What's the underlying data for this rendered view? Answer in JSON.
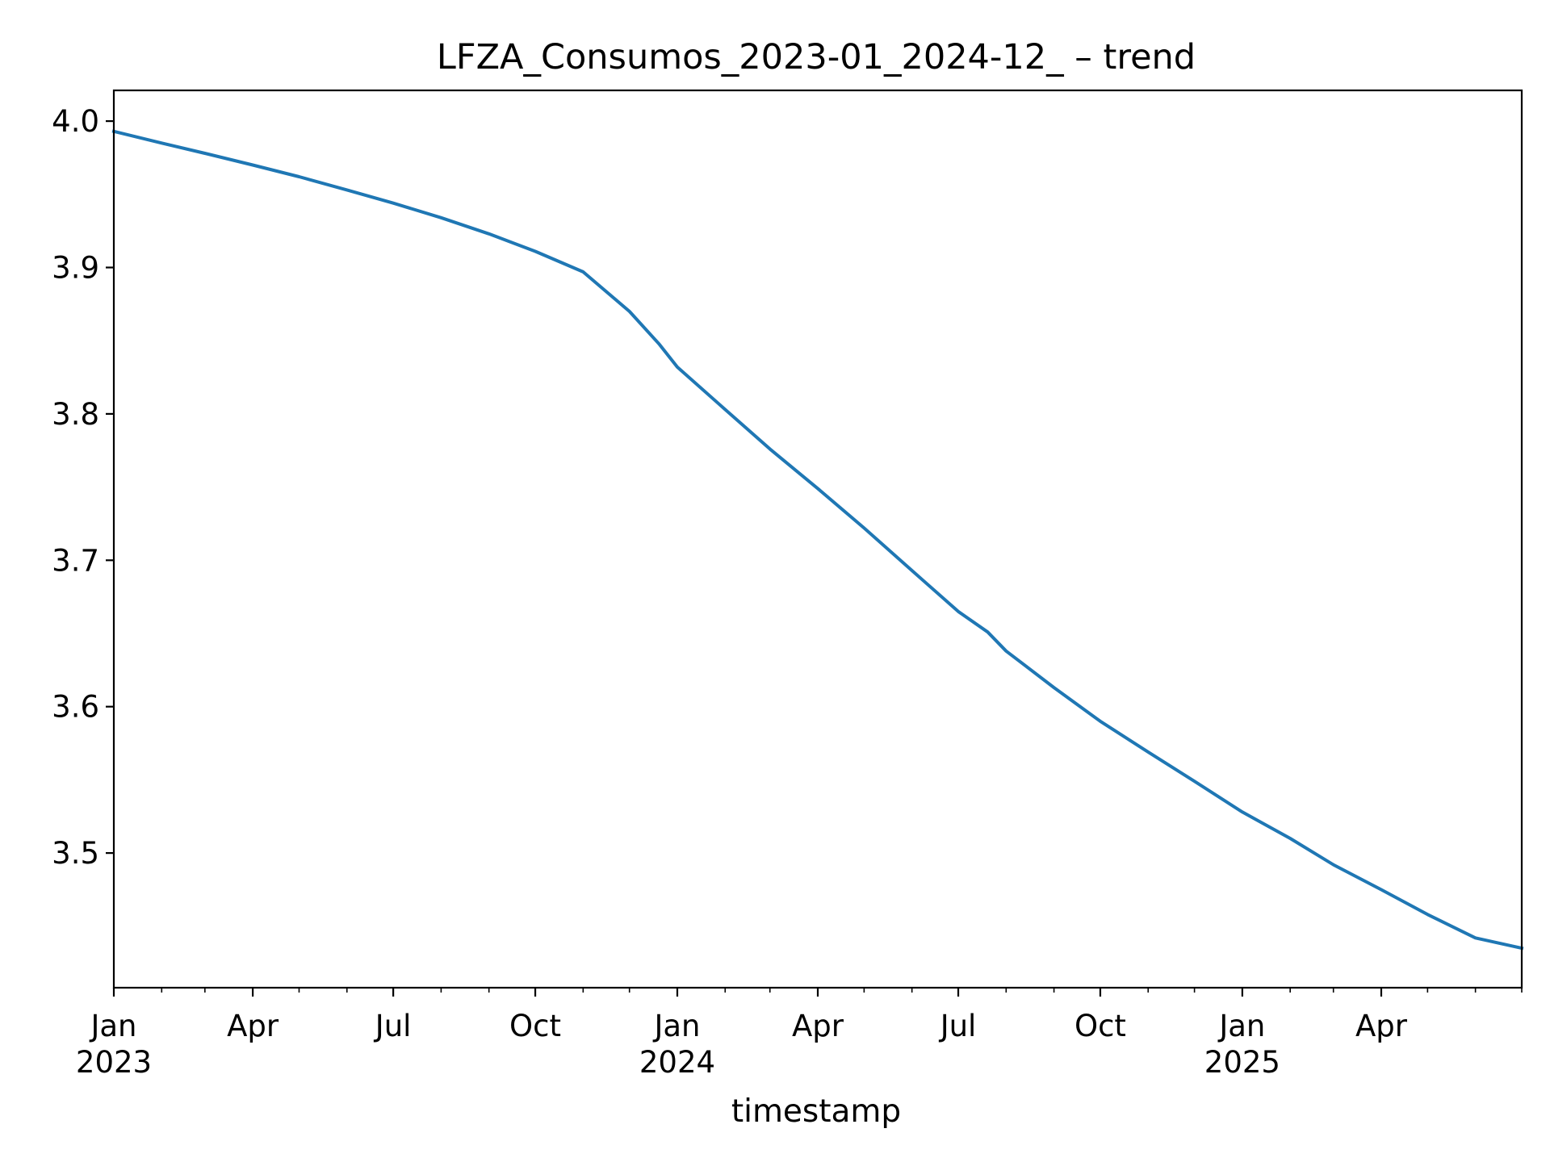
{
  "chart_data": {
    "type": "line",
    "title": "LFZA_Consumos_2023-01_2024-12_ – trend",
    "xlabel": "timestamp",
    "ylabel": "",
    "xlim": [
      "2023-01-01",
      "2025-07-01"
    ],
    "ylim": [
      3.408,
      4.021
    ],
    "grid": false,
    "legend": "none",
    "y_ticks": [
      {
        "value": 4.0,
        "label": "4.0"
      },
      {
        "value": 3.9,
        "label": "3.9"
      },
      {
        "value": 3.8,
        "label": "3.8"
      },
      {
        "value": 3.7,
        "label": "3.7"
      },
      {
        "value": 3.6,
        "label": "3.6"
      },
      {
        "value": 3.5,
        "label": "3.5"
      }
    ],
    "x_major_ticks": [
      {
        "date": "2023-01-01",
        "label": "Jan",
        "sublabel": "2023"
      },
      {
        "date": "2023-04-01",
        "label": "Apr",
        "sublabel": ""
      },
      {
        "date": "2023-07-01",
        "label": "Jul",
        "sublabel": ""
      },
      {
        "date": "2023-10-01",
        "label": "Oct",
        "sublabel": ""
      },
      {
        "date": "2024-01-01",
        "label": "Jan",
        "sublabel": "2024"
      },
      {
        "date": "2024-04-01",
        "label": "Apr",
        "sublabel": ""
      },
      {
        "date": "2024-07-01",
        "label": "Jul",
        "sublabel": ""
      },
      {
        "date": "2024-10-01",
        "label": "Oct",
        "sublabel": ""
      },
      {
        "date": "2025-01-01",
        "label": "Jan",
        "sublabel": "2025"
      },
      {
        "date": "2025-04-01",
        "label": "Apr",
        "sublabel": ""
      }
    ],
    "x_minor_ticks": [
      "2023-02-01",
      "2023-03-01",
      "2023-05-01",
      "2023-06-01",
      "2023-08-01",
      "2023-09-01",
      "2023-11-01",
      "2023-12-01",
      "2024-02-01",
      "2024-03-01",
      "2024-05-01",
      "2024-06-01",
      "2024-08-01",
      "2024-09-01",
      "2024-11-01",
      "2024-12-01",
      "2025-02-01",
      "2025-03-01",
      "2025-05-01",
      "2025-06-01",
      "2025-07-01"
    ],
    "series": [
      {
        "color": "#1f77b4",
        "points": [
          {
            "x": "2023-01-01",
            "y": 3.993
          },
          {
            "x": "2023-02-01",
            "y": 3.985
          },
          {
            "x": "2023-03-01",
            "y": 3.978
          },
          {
            "x": "2023-04-01",
            "y": 3.97
          },
          {
            "x": "2023-05-01",
            "y": 3.962
          },
          {
            "x": "2023-06-01",
            "y": 3.953
          },
          {
            "x": "2023-07-01",
            "y": 3.944
          },
          {
            "x": "2023-08-01",
            "y": 3.934
          },
          {
            "x": "2023-09-01",
            "y": 3.923
          },
          {
            "x": "2023-10-01",
            "y": 3.911
          },
          {
            "x": "2023-11-01",
            "y": 3.897
          },
          {
            "x": "2023-12-01",
            "y": 3.87
          },
          {
            "x": "2023-12-20",
            "y": 3.848
          },
          {
            "x": "2024-01-01",
            "y": 3.832
          },
          {
            "x": "2024-02-01",
            "y": 3.803
          },
          {
            "x": "2024-03-01",
            "y": 3.776
          },
          {
            "x": "2024-04-01",
            "y": 3.749
          },
          {
            "x": "2024-05-01",
            "y": 3.722
          },
          {
            "x": "2024-06-01",
            "y": 3.693
          },
          {
            "x": "2024-07-01",
            "y": 3.665
          },
          {
            "x": "2024-07-20",
            "y": 3.651
          },
          {
            "x": "2024-08-01",
            "y": 3.638
          },
          {
            "x": "2024-09-01",
            "y": 3.613
          },
          {
            "x": "2024-10-01",
            "y": 3.59
          },
          {
            "x": "2024-11-01",
            "y": 3.569
          },
          {
            "x": "2024-12-01",
            "y": 3.549
          },
          {
            "x": "2025-01-01",
            "y": 3.528
          },
          {
            "x": "2025-02-01",
            "y": 3.51
          },
          {
            "x": "2025-03-01",
            "y": 3.492
          },
          {
            "x": "2025-04-01",
            "y": 3.475
          },
          {
            "x": "2025-05-01",
            "y": 3.458
          },
          {
            "x": "2025-06-01",
            "y": 3.442
          },
          {
            "x": "2025-07-01",
            "y": 3.435
          }
        ]
      }
    ]
  }
}
